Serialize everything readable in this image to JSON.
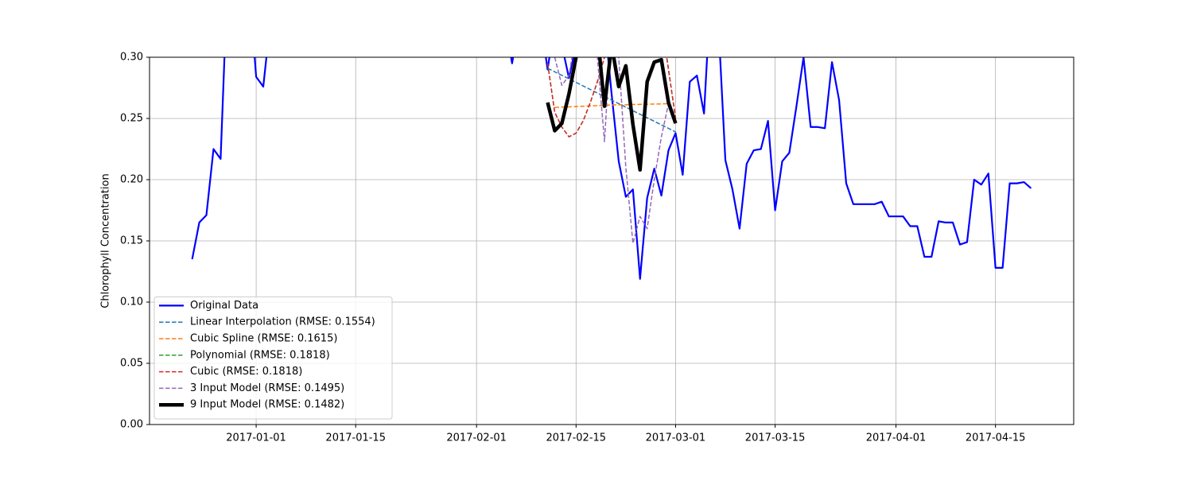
{
  "chart_data": {
    "type": "line",
    "ylabel": "Chlorophyll Concentration",
    "xlim": [
      "2016-12-17",
      "2017-04-26"
    ],
    "ylim": [
      0,
      0.3
    ],
    "xticks": [
      "2017-01-01",
      "2017-01-15",
      "2017-02-01",
      "2017-02-15",
      "2017-03-01",
      "2017-03-15",
      "2017-04-01",
      "2017-04-15"
    ],
    "yticks": [
      {
        "value": 0,
        "label": "0.00"
      },
      {
        "value": 0.05,
        "label": "0.05"
      },
      {
        "value": 0.1,
        "label": "0.10"
      },
      {
        "value": 0.15,
        "label": "0.15"
      },
      {
        "value": 0.2,
        "label": "0.20"
      },
      {
        "value": 0.25,
        "label": "0.25"
      },
      {
        "value": 0.3,
        "label": "0.30"
      }
    ],
    "grid": true,
    "legend": "lower left",
    "series": [
      {
        "name": "Original Data",
        "color": "#0000ff",
        "style": "solid",
        "width": 2.2,
        "x": [
          "2016-12-23",
          "2016-12-24",
          "2016-12-25",
          "2016-12-26",
          "2016-12-27",
          "2016-12-28",
          "2016-12-31",
          "2017-01-01",
          "2017-01-02",
          "2017-01-03",
          "2017-02-05",
          "2017-02-06",
          "2017-02-07",
          "2017-02-10",
          "2017-02-11",
          "2017-02-12",
          "2017-02-13",
          "2017-02-14",
          "2017-02-15",
          "2017-02-19",
          "2017-02-20",
          "2017-02-21",
          "2017-02-22",
          "2017-02-23",
          "2017-02-24",
          "2017-02-25",
          "2017-02-26",
          "2017-02-27",
          "2017-02-28",
          "2017-03-01",
          "2017-03-02",
          "2017-03-03",
          "2017-03-04",
          "2017-03-05",
          "2017-03-06",
          "2017-03-07",
          "2017-03-08",
          "2017-03-09",
          "2017-03-10",
          "2017-03-11",
          "2017-03-12",
          "2017-03-13",
          "2017-03-14",
          "2017-03-15",
          "2017-03-16",
          "2017-03-17",
          "2017-03-18",
          "2017-03-19",
          "2017-03-20",
          "2017-03-21",
          "2017-03-22",
          "2017-03-23",
          "2017-03-24",
          "2017-03-25",
          "2017-03-26",
          "2017-03-27",
          "2017-03-28",
          "2017-03-29",
          "2017-03-30",
          "2017-03-31",
          "2017-04-01",
          "2017-04-02",
          "2017-04-03",
          "2017-04-04",
          "2017-04-05",
          "2017-04-06",
          "2017-04-07",
          "2017-04-08",
          "2017-04-09",
          "2017-04-10",
          "2017-04-11",
          "2017-04-12",
          "2017-04-13",
          "2017-04-14",
          "2017-04-15",
          "2017-04-16",
          "2017-04-17",
          "2017-04-18",
          "2017-04-19",
          "2017-04-20"
        ],
        "values": [
          0.135,
          0.165,
          0.171,
          0.225,
          0.217,
          0.37,
          0.36,
          0.284,
          0.276,
          0.33,
          0.33,
          0.295,
          0.33,
          0.33,
          0.29,
          0.33,
          0.31,
          0.283,
          0.31,
          0.33,
          0.27,
          0.215,
          0.186,
          0.192,
          0.119,
          0.185,
          0.209,
          0.187,
          0.224,
          0.238,
          0.204,
          0.28,
          0.285,
          0.254,
          0.36,
          0.33,
          0.216,
          0.192,
          0.16,
          0.213,
          0.224,
          0.225,
          0.248,
          0.175,
          0.215,
          0.222,
          0.26,
          0.3,
          0.243,
          0.243,
          0.242,
          0.296,
          0.265,
          0.197,
          0.18,
          0.18,
          0.18,
          0.18,
          0.182,
          0.17,
          0.17,
          0.17,
          0.162,
          0.162,
          0.137,
          0.137,
          0.166,
          0.165,
          0.165,
          0.147,
          0.149,
          0.2,
          0.196,
          0.205,
          0.128,
          0.128,
          0.197,
          0.197,
          0.198,
          0.193
        ]
      },
      {
        "name": "Linear Interpolation (RMSE: 0.1554)",
        "color": "#1f77b4",
        "style": "dashed",
        "width": 1.5,
        "x": [
          "2017-02-11",
          "2017-03-01"
        ],
        "values": [
          0.291,
          0.239
        ]
      },
      {
        "name": "Cubic Spline (RMSE: 0.1615)",
        "color": "#ff7f0e",
        "style": "dashed",
        "width": 1.5,
        "x": [
          "2017-02-12",
          "2017-02-20",
          "2017-02-28"
        ],
        "values": [
          0.259,
          0.261,
          0.262
        ]
      },
      {
        "name": "Polynomial (RMSE: 0.1818)",
        "color": "#2ca02c",
        "style": "dashed",
        "width": 1.5,
        "x": [
          "2017-02-11",
          "2017-02-12",
          "2017-02-13",
          "2017-02-14",
          "2017-02-15",
          "2017-02-16",
          "2017-02-17",
          "2017-02-18",
          "2017-02-19",
          "2017-02-20",
          "2017-02-27",
          "2017-02-28",
          "2017-03-01"
        ],
        "values": [
          0.295,
          0.255,
          0.243,
          0.235,
          0.238,
          0.248,
          0.263,
          0.28,
          0.3,
          0.33,
          0.33,
          0.29,
          0.25
        ]
      },
      {
        "name": "Cubic (RMSE: 0.1818)",
        "color": "#d62728",
        "style": "dashed",
        "width": 1.5,
        "x": [
          "2017-02-11",
          "2017-02-12",
          "2017-02-13",
          "2017-02-14",
          "2017-02-15",
          "2017-02-16",
          "2017-02-17",
          "2017-02-18",
          "2017-02-19",
          "2017-02-20",
          "2017-02-27",
          "2017-02-28",
          "2017-03-01"
        ],
        "values": [
          0.295,
          0.255,
          0.243,
          0.235,
          0.238,
          0.248,
          0.263,
          0.28,
          0.3,
          0.33,
          0.33,
          0.29,
          0.25
        ]
      },
      {
        "name": "3 Input Model (RMSE: 0.1495)",
        "color": "#9467bd",
        "style": "dashed",
        "width": 1.5,
        "x": [
          "2017-02-12",
          "2017-02-13",
          "2017-02-14",
          "2017-02-15",
          "2017-02-16",
          "2017-02-17",
          "2017-02-18",
          "2017-02-19",
          "2017-02-20",
          "2017-02-21",
          "2017-02-22",
          "2017-02-23",
          "2017-02-24",
          "2017-02-25",
          "2017-02-26",
          "2017-02-27",
          "2017-02-28"
        ],
        "values": [
          0.3,
          0.277,
          0.285,
          0.32,
          0.34,
          0.34,
          0.3,
          0.231,
          0.33,
          0.3,
          0.21,
          0.148,
          0.17,
          0.16,
          0.2,
          0.235,
          0.262
        ]
      },
      {
        "name": "9 Input Model (RMSE: 0.1482)",
        "color": "#000000",
        "style": "solid",
        "width": 4.5,
        "x": [
          "2017-02-11",
          "2017-02-12",
          "2017-02-13",
          "2017-02-14",
          "2017-02-15",
          "2017-02-16",
          "2017-02-18",
          "2017-02-19",
          "2017-02-20",
          "2017-02-21",
          "2017-02-22",
          "2017-02-23",
          "2017-02-24",
          "2017-02-25",
          "2017-02-26",
          "2017-02-27",
          "2017-02-28",
          "2017-03-01"
        ],
        "values": [
          0.263,
          0.24,
          0.246,
          0.27,
          0.3,
          0.33,
          0.32,
          0.26,
          0.31,
          0.276,
          0.293,
          0.245,
          0.208,
          0.28,
          0.296,
          0.298,
          0.263,
          0.246
        ]
      }
    ]
  }
}
